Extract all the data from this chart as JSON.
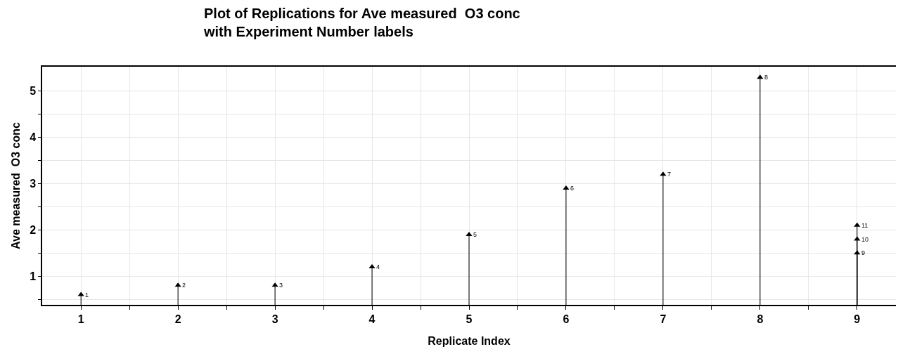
{
  "chart_data": {
    "type": "lollipop",
    "title": "Plot of Replications for Ave measured  O3 conc\nwith Experiment Number labels",
    "xlabel": "Replicate Index",
    "ylabel": "Ave measured  O3 conc",
    "x": [
      1,
      2,
      3,
      4,
      5,
      6,
      7,
      8,
      9,
      9,
      9
    ],
    "values": [
      0.6,
      0.8,
      0.8,
      1.2,
      1.9,
      2.9,
      3.2,
      5.3,
      1.5,
      1.8,
      2.1
    ],
    "annotations": [
      {
        "text": "1",
        "x": 1,
        "y": 0.6
      },
      {
        "text": "2",
        "x": 2,
        "y": 0.8
      },
      {
        "text": "3",
        "x": 3,
        "y": 0.8
      },
      {
        "text": "4",
        "x": 4,
        "y": 1.2
      },
      {
        "text": "5",
        "x": 5,
        "y": 1.9
      },
      {
        "text": "6",
        "x": 6,
        "y": 2.9
      },
      {
        "text": "7",
        "x": 7,
        "y": 3.2
      },
      {
        "text": "8",
        "x": 8,
        "y": 5.3
      },
      {
        "text": "9",
        "x": 9,
        "y": 1.5
      },
      {
        "text": "10",
        "x": 9,
        "y": 1.8
      },
      {
        "text": "11",
        "x": 9,
        "y": 2.1
      }
    ],
    "color": "#000000",
    "marker": "triangle",
    "grid": true,
    "xlim": [
      0.6,
      9.4
    ],
    "ylim": [
      0.38,
      5.53
    ],
    "xticks": [
      1,
      {
        "value": 1.5,
        "label": null
      },
      2,
      {
        "value": 2.5,
        "label": null
      },
      3,
      {
        "value": 3.5,
        "label": null
      },
      4,
      {
        "value": 4.5,
        "label": null
      },
      5,
      {
        "value": 5.5,
        "label": null
      },
      6,
      {
        "value": 6.5,
        "label": null
      },
      7,
      {
        "value": 7.5,
        "label": null
      },
      8,
      {
        "value": 8.5,
        "label": null
      },
      9
    ],
    "yticks": [
      {
        "value": 0.5,
        "label": null
      },
      1,
      {
        "value": 1.5,
        "label": null
      },
      2,
      {
        "value": 2.5,
        "label": null
      },
      3,
      {
        "value": 3.5,
        "label": null
      },
      4,
      {
        "value": 4.5,
        "label": null
      },
      5
    ]
  }
}
